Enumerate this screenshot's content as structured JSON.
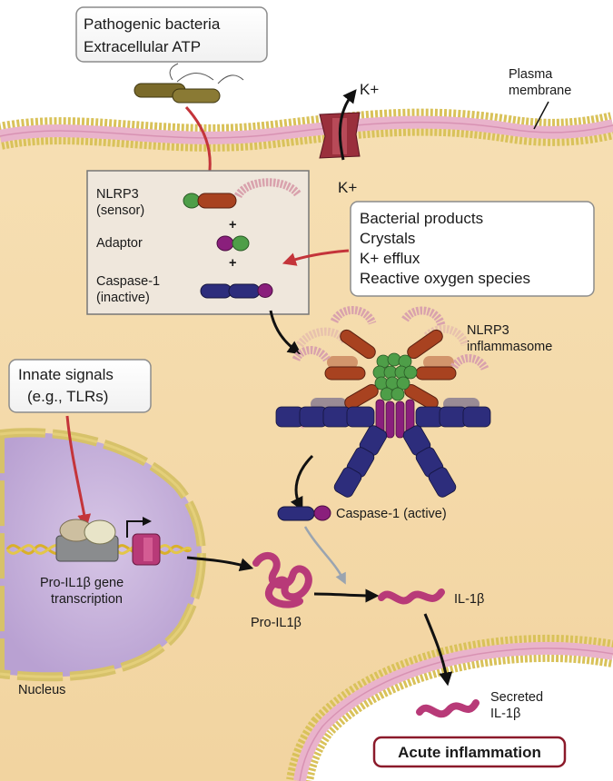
{
  "top_box": {
    "line1": "Pathogenic bacteria",
    "line2": "Extracellular ATP"
  },
  "plasma_membrane": {
    "line1": "Plasma",
    "line2": "membrane"
  },
  "k_out": "K+",
  "k_in": "K+",
  "sensor_box": {
    "nlrp3_line1": "NLRP3",
    "nlrp3_line2": "(sensor)",
    "plus1": "+",
    "adaptor": "Adaptor",
    "plus2": "+",
    "casp_line1": "Caspase-1",
    "casp_line2": "(inactive)"
  },
  "stimuli_box": {
    "items": [
      "Bacterial products",
      "Crystals",
      "K+ efflux",
      "Reactive oxygen species"
    ]
  },
  "inflammasome": {
    "line1": "NLRP3",
    "line2": "inflammasome"
  },
  "innate_box": {
    "line1": "Innate signals",
    "line2": "(e.g., TLRs)"
  },
  "caspase_active": "Caspase-1 (active)",
  "pro_gene": {
    "line1": "Pro-IL1β gene",
    "line2": "transcription"
  },
  "pro_il1b": "Pro-IL1β",
  "il1b": "IL-1β",
  "secreted": {
    "line1": "Secreted",
    "line2": "IL-1β"
  },
  "nucleus": "Nucleus",
  "outcome": "Acute inflammation",
  "colors": {
    "cytoplasm": "#f5dcae",
    "membrane_lipid": "#d9c25a",
    "membrane_core": "#e7a7c4",
    "nucleus": "#c8b4dc",
    "arrow_red": "#c4343a",
    "arrow_gray": "#9aa4b0",
    "casp_blue": "#2d2d7c",
    "adaptor_purple": "#8a1f7c",
    "adaptor_green": "#4e9e48",
    "nlrp3_brown": "#a84220",
    "lrr_pink": "#d9a2ad",
    "il1b_magenta": "#b83a78",
    "outcome_border": "#8b1a2a"
  }
}
